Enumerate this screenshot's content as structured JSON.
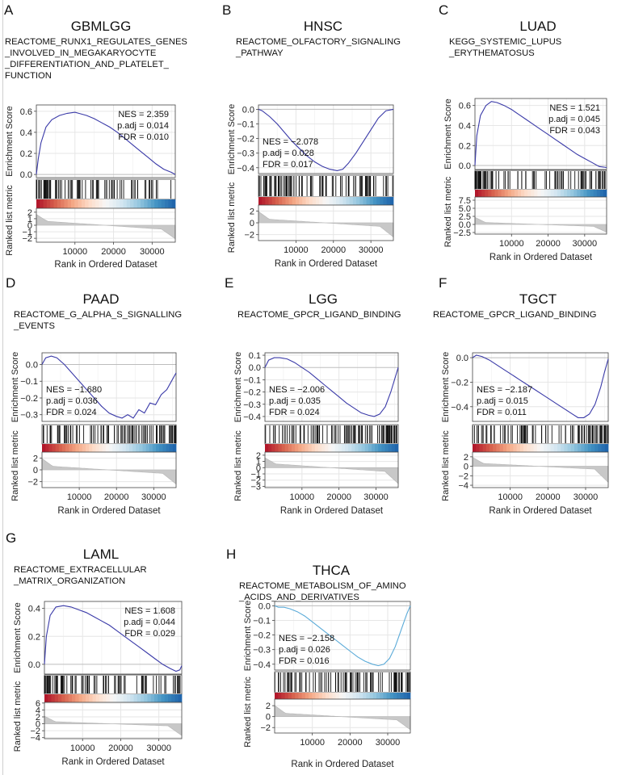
{
  "figure_title": "",
  "chart_data": [
    {
      "type": "line",
      "panel_label": "A",
      "cancer": "GBMLGG",
      "pathway_lines": [
        "REACTOME_RUNX1_REGULATES_GENES",
        "_INVOLVED_IN_MEGAKARYOCYTE",
        "_DIFFERENTIATION_AND_PLATELET_",
        "FUNCTION"
      ],
      "stats": [
        "NES = 2.359",
        "p.adj = 0.014",
        "FDR = 0.010"
      ],
      "stats_position": "top-right",
      "ylabel": "Enrichment Score",
      "metric_label": "Ranked list metric",
      "xlabel": "Rank in Ordered Dataset",
      "x_ticks": [
        10000,
        20000,
        30000
      ],
      "es_yticks": [
        0.0,
        0.2,
        0.4,
        0.6
      ],
      "es_ylim": [
        -0.03,
        0.66
      ],
      "metric_yticks": [
        -2,
        -1,
        0,
        1,
        2
      ],
      "metric_ylim": [
        -2.6,
        2.6
      ],
      "grid": true,
      "line_color": "#3a3aa8",
      "x": [
        0,
        500,
        1200,
        2500,
        4000,
        6000,
        8000,
        10000,
        11000,
        13000,
        15000,
        17000,
        19000,
        21000,
        23000,
        25000,
        27000,
        29000,
        31000,
        33000,
        35000,
        36000
      ],
      "y": [
        0.0,
        0.15,
        0.3,
        0.45,
        0.52,
        0.56,
        0.58,
        0.59,
        0.58,
        0.56,
        0.53,
        0.49,
        0.45,
        0.4,
        0.34,
        0.28,
        0.22,
        0.16,
        0.1,
        0.05,
        0.02,
        0.0
      ]
    },
    {
      "type": "line",
      "panel_label": "B",
      "cancer": "HNSC",
      "pathway_lines": [
        "REACTOME_OLFACTORY_SIGNALING",
        "_PATHWAY"
      ],
      "stats": [
        "NES = −2.078",
        "p.adj = 0.028",
        "FDR = 0.017"
      ],
      "stats_position": "bottom-left",
      "ylabel": "Enrichment Score",
      "metric_label": "Ranked list metric",
      "xlabel": "Rank in Ordered Dataset",
      "x_ticks": [
        10000,
        20000,
        30000
      ],
      "es_yticks": [
        -0.4,
        -0.3,
        -0.2,
        -0.1,
        0.0
      ],
      "es_ylim": [
        -0.44,
        0.03
      ],
      "metric_yticks": [
        -2,
        0,
        2
      ],
      "metric_ylim": [
        -3,
        3
      ],
      "grid": true,
      "line_color": "#3a3aa8",
      "x": [
        0,
        1000,
        3000,
        5000,
        7000,
        9000,
        11000,
        13000,
        15000,
        17000,
        19000,
        21000,
        22500,
        24000,
        26000,
        28000,
        30000,
        32000,
        34000,
        36000
      ],
      "y": [
        0.0,
        -0.01,
        -0.05,
        -0.1,
        -0.16,
        -0.22,
        -0.27,
        -0.32,
        -0.36,
        -0.39,
        -0.41,
        -0.42,
        -0.41,
        -0.37,
        -0.3,
        -0.22,
        -0.14,
        -0.06,
        -0.01,
        0.0
      ]
    },
    {
      "type": "line",
      "panel_label": "C",
      "cancer": "LUAD",
      "pathway_lines": [
        "KEGG_SYSTEMIC_LUPUS",
        "_ERYTHEMATOSUS"
      ],
      "stats": [
        "NES = 1.521",
        "p.adj = 0.045",
        "FDR = 0.043"
      ],
      "stats_position": "top-right",
      "ylabel": "Enrichment Score",
      "metric_label": "Ranked list metric",
      "xlabel": "Rank in Ordered Dataset",
      "x_ticks": [
        10000,
        20000,
        30000
      ],
      "es_yticks": [
        0.0,
        0.2,
        0.4,
        0.6
      ],
      "es_ylim": [
        -0.04,
        0.67
      ],
      "metric_yticks": [
        -2.5,
        0.0,
        2.5,
        5.0,
        7.5
      ],
      "metric_ylim": [
        -3,
        8.5
      ],
      "grid": true,
      "line_color": "#3a3aa8",
      "x": [
        0,
        500,
        1500,
        3000,
        4500,
        6000,
        8000,
        10000,
        12000,
        14000,
        16000,
        18000,
        20000,
        22000,
        24000,
        26000,
        28000,
        30000,
        32000,
        34000,
        36000
      ],
      "y": [
        0.0,
        0.3,
        0.5,
        0.6,
        0.64,
        0.63,
        0.6,
        0.56,
        0.51,
        0.46,
        0.41,
        0.36,
        0.31,
        0.26,
        0.21,
        0.16,
        0.11,
        0.07,
        0.03,
        -0.01,
        -0.02
      ]
    },
    {
      "type": "line",
      "panel_label": "D",
      "cancer": "PAAD",
      "pathway_lines": [
        "REACTOME_G_ALPHA_S_SIGNALLING",
        "_EVENTS"
      ],
      "stats": [
        "NES = −1.680",
        "p.adj = 0.036",
        "FDR = 0.024"
      ],
      "stats_position": "bottom-left",
      "ylabel": "Enrichment Score",
      "metric_label": "Ranked list metric",
      "xlabel": "Rank in Ordered Dataset",
      "x_ticks": [
        10000,
        20000,
        30000
      ],
      "es_yticks": [
        -0.3,
        -0.2,
        -0.1,
        0.0
      ],
      "es_ylim": [
        -0.34,
        0.07
      ],
      "metric_yticks": [
        -2,
        0,
        2
      ],
      "metric_ylim": [
        -3,
        3
      ],
      "grid": true,
      "line_color": "#3a3aa8",
      "x": [
        0,
        1000,
        2500,
        4000,
        6000,
        8000,
        10000,
        12000,
        14000,
        16000,
        18000,
        20000,
        21500,
        23000,
        24500,
        26000,
        27500,
        29000,
        30500,
        32000,
        33500,
        35000,
        36000
      ],
      "y": [
        0.0,
        0.04,
        0.05,
        0.04,
        0.0,
        -0.05,
        -0.1,
        -0.15,
        -0.2,
        -0.25,
        -0.29,
        -0.31,
        -0.32,
        -0.3,
        -0.32,
        -0.27,
        -0.29,
        -0.23,
        -0.24,
        -0.18,
        -0.15,
        -0.09,
        -0.05
      ]
    },
    {
      "type": "line",
      "panel_label": "E",
      "cancer": "LGG",
      "pathway_lines": [
        "REACTOME_GPCR_LIGAND_BINDING"
      ],
      "stats": [
        "NES = −2.006",
        "p.adj = 0.035",
        "FDR = 0.024"
      ],
      "stats_position": "bottom-left",
      "ylabel": "Enrichment Score",
      "metric_label": "Ranked list metric",
      "xlabel": "Rank in Ordered Dataset",
      "x_ticks": [
        10000,
        20000,
        30000
      ],
      "es_yticks": [
        -0.4,
        -0.3,
        -0.2,
        -0.1,
        0.0,
        0.1
      ],
      "es_ylim": [
        -0.44,
        0.12
      ],
      "metric_yticks": [
        -3,
        -2,
        -1,
        0,
        1,
        2
      ],
      "metric_ylim": [
        -3.2,
        2.5
      ],
      "grid": true,
      "line_color": "#3a3aa8",
      "x": [
        0,
        1000,
        2500,
        4000,
        6000,
        8000,
        10000,
        12000,
        14000,
        16000,
        18000,
        20000,
        22000,
        24000,
        26000,
        28000,
        29500,
        31000,
        32500,
        34000,
        35000,
        36000
      ],
      "y": [
        0.0,
        0.06,
        0.08,
        0.08,
        0.07,
        0.04,
        0.0,
        -0.04,
        -0.09,
        -0.14,
        -0.19,
        -0.24,
        -0.29,
        -0.33,
        -0.37,
        -0.39,
        -0.4,
        -0.38,
        -0.32,
        -0.2,
        -0.1,
        0.0
      ]
    },
    {
      "type": "line",
      "panel_label": "F",
      "cancer": "TGCT",
      "pathway_lines": [
        "REACTOME_GPCR_LIGAND_BINDING"
      ],
      "stats": [
        "NES = −2.187",
        "p.adj = 0.015",
        "FDR = 0.011"
      ],
      "stats_position": "bottom-left",
      "ylabel": "Enrichment Score",
      "metric_label": "Ranked list metric",
      "xlabel": "Rank in Ordered Dataset",
      "x_ticks": [
        10000,
        20000,
        30000
      ],
      "es_yticks": [
        -0.4,
        -0.2,
        0.0
      ],
      "es_ylim": [
        -0.52,
        0.04
      ],
      "metric_yticks": [
        -4,
        -2,
        0,
        2
      ],
      "metric_ylim": [
        -4.5,
        3
      ],
      "grid": true,
      "line_color": "#3a3aa8",
      "x": [
        0,
        1000,
        2500,
        4500,
        6500,
        8500,
        10500,
        12500,
        14500,
        16500,
        18500,
        20500,
        22500,
        24500,
        26500,
        28000,
        29500,
        31000,
        32500,
        34000,
        35000,
        36000
      ],
      "y": [
        0.0,
        0.02,
        0.01,
        -0.02,
        -0.06,
        -0.1,
        -0.14,
        -0.18,
        -0.22,
        -0.26,
        -0.3,
        -0.34,
        -0.38,
        -0.42,
        -0.46,
        -0.49,
        -0.49,
        -0.46,
        -0.38,
        -0.24,
        -0.12,
        -0.01
      ]
    },
    {
      "type": "line",
      "panel_label": "G",
      "cancer": "LAML",
      "pathway_lines": [
        "REACTOME_EXTRACELLULAR",
        "_MATRIX_ORGANIZATION"
      ],
      "stats": [
        "NES = 1.608",
        "p.adj = 0.044",
        "FDR = 0.029"
      ],
      "stats_position": "top-right",
      "ylabel": "Enrichment Score",
      "metric_label": "Ranked list metric",
      "xlabel": "Rank in Ordered Dataset",
      "x_ticks": [
        10000,
        20000,
        30000
      ],
      "es_yticks": [
        0.0,
        0.2,
        0.4
      ],
      "es_ylim": [
        -0.07,
        0.45
      ],
      "metric_yticks": [
        -4,
        -2,
        0,
        2,
        4,
        6
      ],
      "metric_ylim": [
        -4.3,
        6.2
      ],
      "grid": true,
      "line_color": "#3a3aa8",
      "x": [
        0,
        500,
        1500,
        3000,
        5000,
        7000,
        9000,
        11000,
        13000,
        15000,
        17000,
        19000,
        21000,
        23000,
        25000,
        27000,
        29000,
        31000,
        33000,
        34500,
        35500,
        36000
      ],
      "y": [
        0.0,
        0.2,
        0.35,
        0.41,
        0.42,
        0.41,
        0.39,
        0.37,
        0.34,
        0.31,
        0.28,
        0.24,
        0.2,
        0.16,
        0.12,
        0.08,
        0.04,
        0.0,
        -0.03,
        -0.05,
        -0.04,
        -0.01
      ]
    },
    {
      "type": "line",
      "panel_label": "H",
      "cancer": "THCA",
      "pathway_lines": [
        "REACTOME_METABOLISM_OF_AMINO",
        "_ACIDS_AND_DERIVATIVES"
      ],
      "stats": [
        "NES = −2.158",
        "p.adj = 0.026",
        "FDR = 0.016"
      ],
      "stats_position": "bottom-left",
      "ylabel": "Enrichment Score",
      "metric_label": "Ranked list metric",
      "xlabel": "Rank in Ordered Dataset",
      "x_ticks": [
        10000,
        20000,
        30000
      ],
      "es_yticks": [
        -0.4,
        -0.3,
        -0.2,
        -0.1,
        0.0
      ],
      "es_ylim": [
        -0.44,
        0.03
      ],
      "metric_yticks": [
        -2,
        0,
        2
      ],
      "metric_ylim": [
        -3,
        3.2
      ],
      "grid": true,
      "line_color": "#5aaad8",
      "x": [
        0,
        1000,
        2500,
        4000,
        6000,
        8000,
        10000,
        12000,
        14000,
        16000,
        18000,
        20000,
        22000,
        24000,
        26000,
        27500,
        29000,
        30500,
        32000,
        33500,
        35000,
        36000
      ],
      "y": [
        0.0,
        -0.01,
        -0.01,
        -0.02,
        -0.04,
        -0.07,
        -0.11,
        -0.15,
        -0.19,
        -0.23,
        -0.27,
        -0.31,
        -0.35,
        -0.38,
        -0.4,
        -0.41,
        -0.4,
        -0.36,
        -0.28,
        -0.17,
        -0.06,
        0.0
      ]
    }
  ]
}
